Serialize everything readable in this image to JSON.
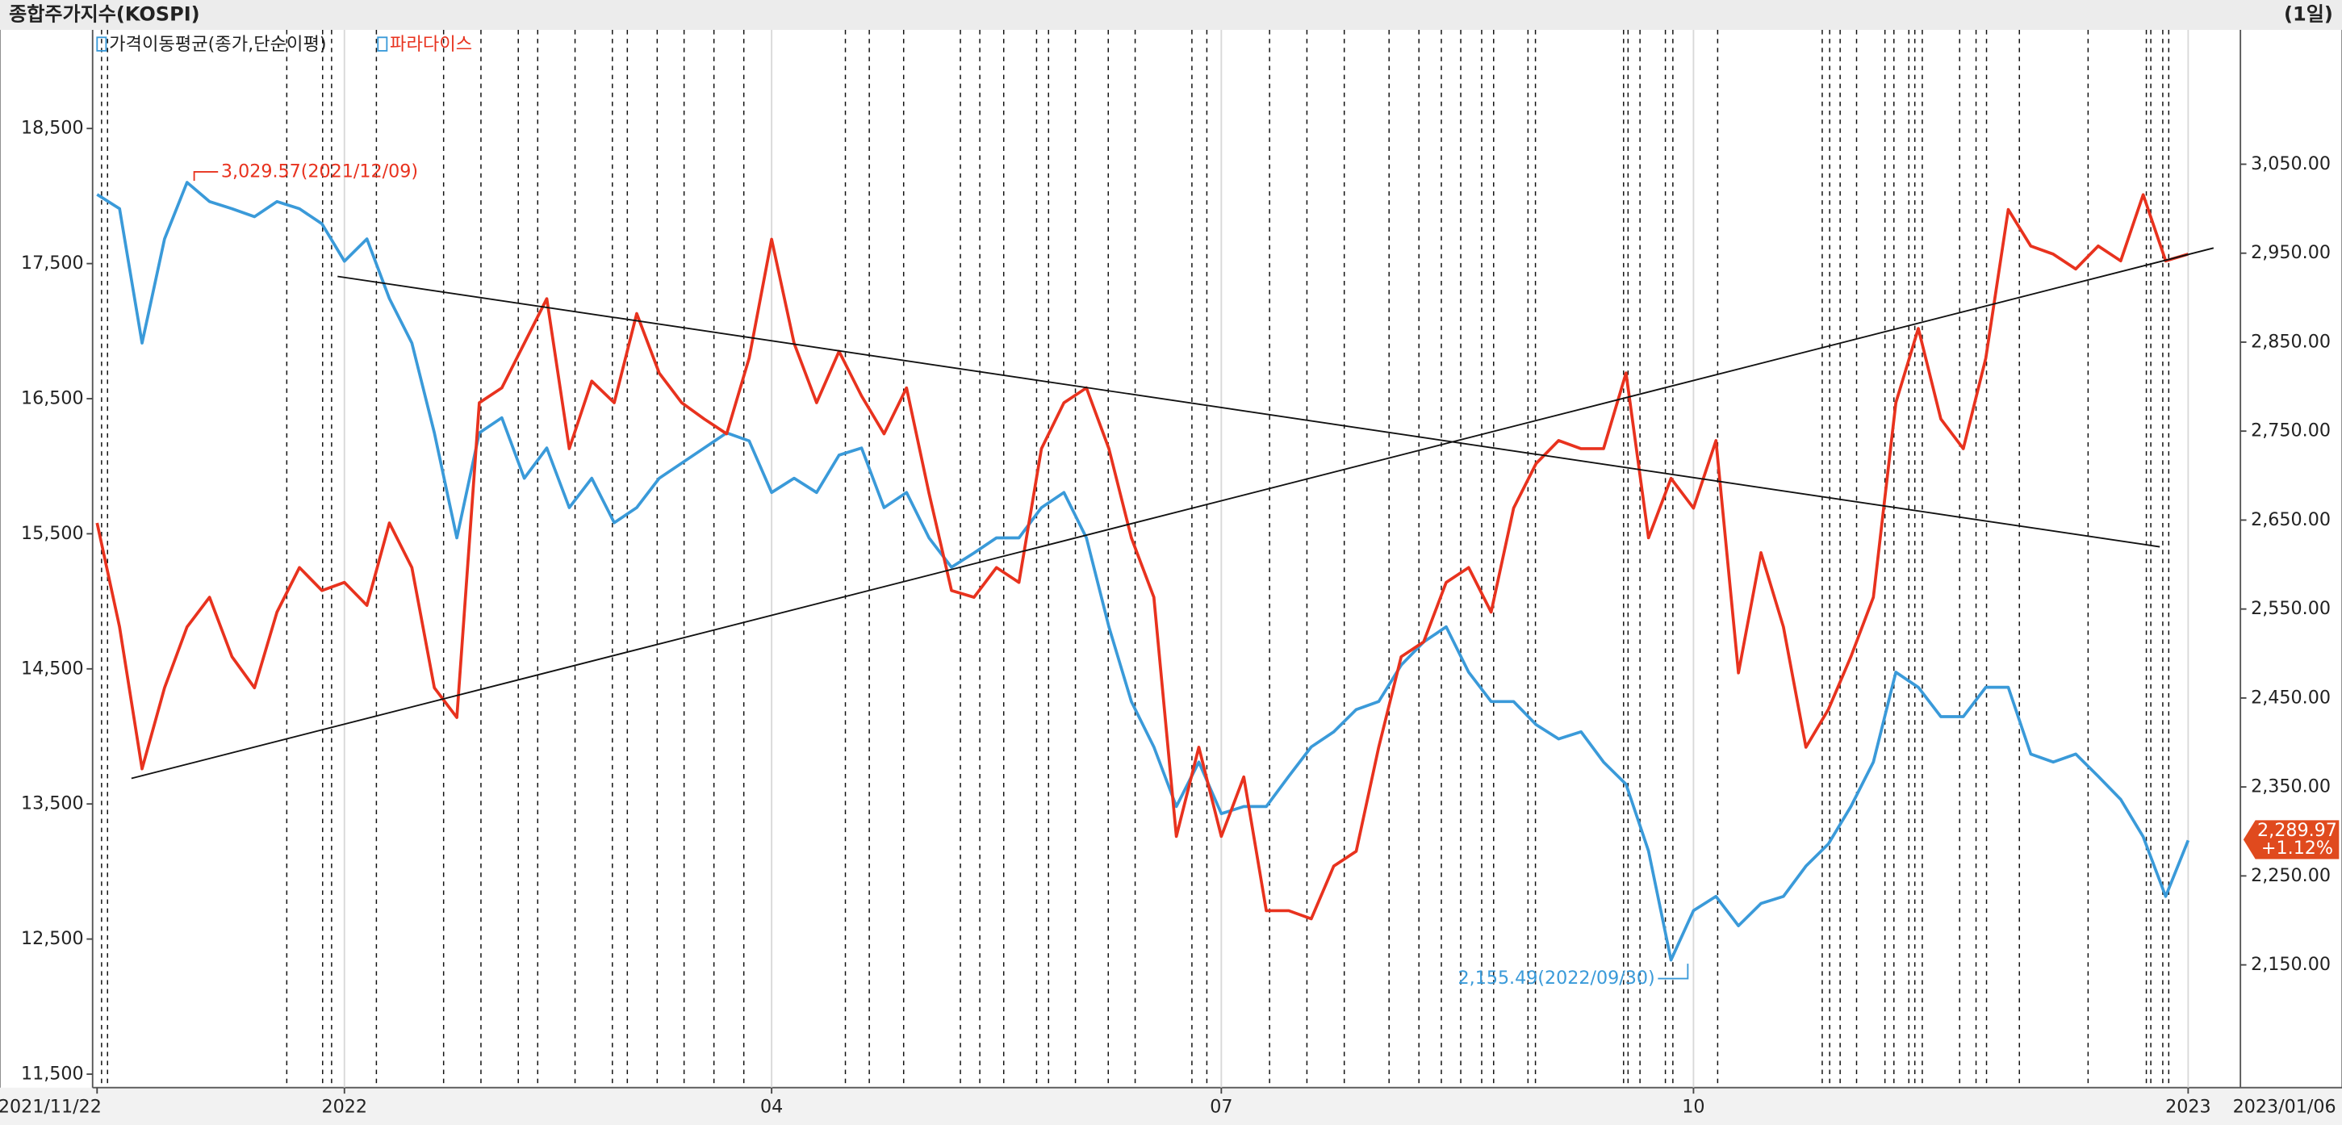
{
  "chart_data": {
    "type": "line",
    "title": "종합주가지수(KOSPI)",
    "period": "(1일)",
    "indicator_label": "가격이동평균(종가,단순이평)",
    "categories": [
      "2021/11/22",
      null,
      null,
      null,
      null,
      null,
      null,
      null,
      null,
      null,
      null,
      "2022",
      null,
      null,
      null,
      null,
      null,
      null,
      null,
      null,
      null,
      null,
      null,
      null,
      null,
      null,
      null,
      null,
      null,
      null,
      "04",
      null,
      null,
      null,
      null,
      null,
      null,
      null,
      null,
      null,
      null,
      null,
      null,
      null,
      null,
      null,
      null,
      null,
      null,
      null,
      "07",
      null,
      null,
      null,
      null,
      null,
      null,
      null,
      null,
      null,
      null,
      null,
      null,
      null,
      null,
      null,
      null,
      null,
      null,
      null,
      null,
      "10",
      null,
      null,
      null,
      null,
      null,
      null,
      null,
      null,
      null,
      null,
      null,
      null,
      null,
      null,
      null,
      null,
      null,
      null,
      null,
      null,
      null,
      "2023"
    ],
    "date_range_end": "2023/01/06",
    "ylim": [
      11400,
      19230
    ],
    "yticks": [
      {
        "value": 18500,
        "label": "18,500"
      },
      {
        "value": 17500,
        "label": "17,500"
      },
      {
        "value": 16500,
        "label": "16,500"
      },
      {
        "value": 15500,
        "label": "15,500"
      },
      {
        "value": 14500,
        "label": "14,500"
      },
      {
        "value": 13500,
        "label": "13,500"
      },
      {
        "value": 12500,
        "label": "12,500"
      },
      {
        "value": 11500,
        "label": "11,500"
      }
    ],
    "y2lim": [
      2012,
      3201
    ],
    "y2ticks": [
      {
        "value": 3050,
        "label": "3,050.00"
      },
      {
        "value": 2950,
        "label": "2,950.00"
      },
      {
        "value": 2850,
        "label": "2,850.00"
      },
      {
        "value": 2750,
        "label": "2,750.00"
      },
      {
        "value": 2650,
        "label": "2,650.00"
      },
      {
        "value": 2550,
        "label": "2,550.00"
      },
      {
        "value": 2450,
        "label": "2,450.00"
      },
      {
        "value": 2350,
        "label": "2,350.00"
      },
      {
        "value": 2250,
        "label": "2,250.00"
      },
      {
        "value": 2150,
        "label": "2,150.00"
      }
    ],
    "series": [
      {
        "color": "#3a9ad9",
        "axis": "y2",
        "values": [
          3016,
          3000,
          2849,
          2966,
          3029.57,
          3008,
          3000,
          2991,
          3008,
          3000,
          2983,
          2941,
          2966,
          2899,
          2849,
          2748,
          2630,
          2748,
          2765,
          2697,
          2731,
          2664,
          2697,
          2647,
          2664,
          2697,
          2714,
          2731,
          2748,
          2739,
          2681,
          2697,
          2681,
          2723,
          2731,
          2664,
          2681,
          2630,
          2597,
          2613,
          2630,
          2630,
          2664,
          2681,
          2630,
          2530,
          2446,
          2395,
          2328,
          2378,
          2320,
          2328,
          2328,
          2362,
          2395,
          2412,
          2437,
          2446,
          2487,
          2513,
          2530,
          2479,
          2446,
          2446,
          2420,
          2404,
          2412,
          2378,
          2353,
          2278,
          2155.49,
          2211,
          2227,
          2194,
          2219,
          2227,
          2261,
          2286,
          2328,
          2378,
          2479,
          2462,
          2429,
          2429,
          2462,
          2462,
          2387,
          2378,
          2387,
          2362,
          2336,
          2294,
          2227,
          2289.97
        ],
        "max_label": "3,029.57(2021/12/09)",
        "min_label": "2,155.49(2022/09/30)",
        "last_label": "2,289.97",
        "last_change": "+1.12%"
      },
      {
        "name": "파라다이스",
        "color": "#e8321e",
        "values": [
          15580,
          14810,
          13760,
          14360,
          14810,
          15030,
          14590,
          14360,
          14920,
          15250,
          15080,
          15140,
          14970,
          15580,
          15250,
          14360,
          14140,
          16470,
          16580,
          16910,
          17240,
          16130,
          16630,
          16470,
          17130,
          16690,
          16470,
          16350,
          16240,
          16800,
          17680,
          16910,
          16470,
          16850,
          16520,
          16240,
          16580,
          15800,
          15080,
          15030,
          15250,
          15140,
          16130,
          16470,
          16580,
          16130,
          15470,
          15030,
          13260,
          13920,
          13260,
          13700,
          12710,
          12710,
          12650,
          13040,
          13150,
          13920,
          14590,
          14700,
          15140,
          15250,
          14920,
          15690,
          16020,
          16190,
          16130,
          16130,
          16690,
          15470,
          15910,
          15690,
          16190,
          14470,
          15360,
          14810,
          13920,
          14200,
          14590,
          15030,
          16470,
          17020,
          16350,
          16130,
          16800,
          17900,
          17630,
          17570,
          17460,
          17630,
          17520,
          18010,
          17520,
          17570
        ]
      }
    ]
  }
}
